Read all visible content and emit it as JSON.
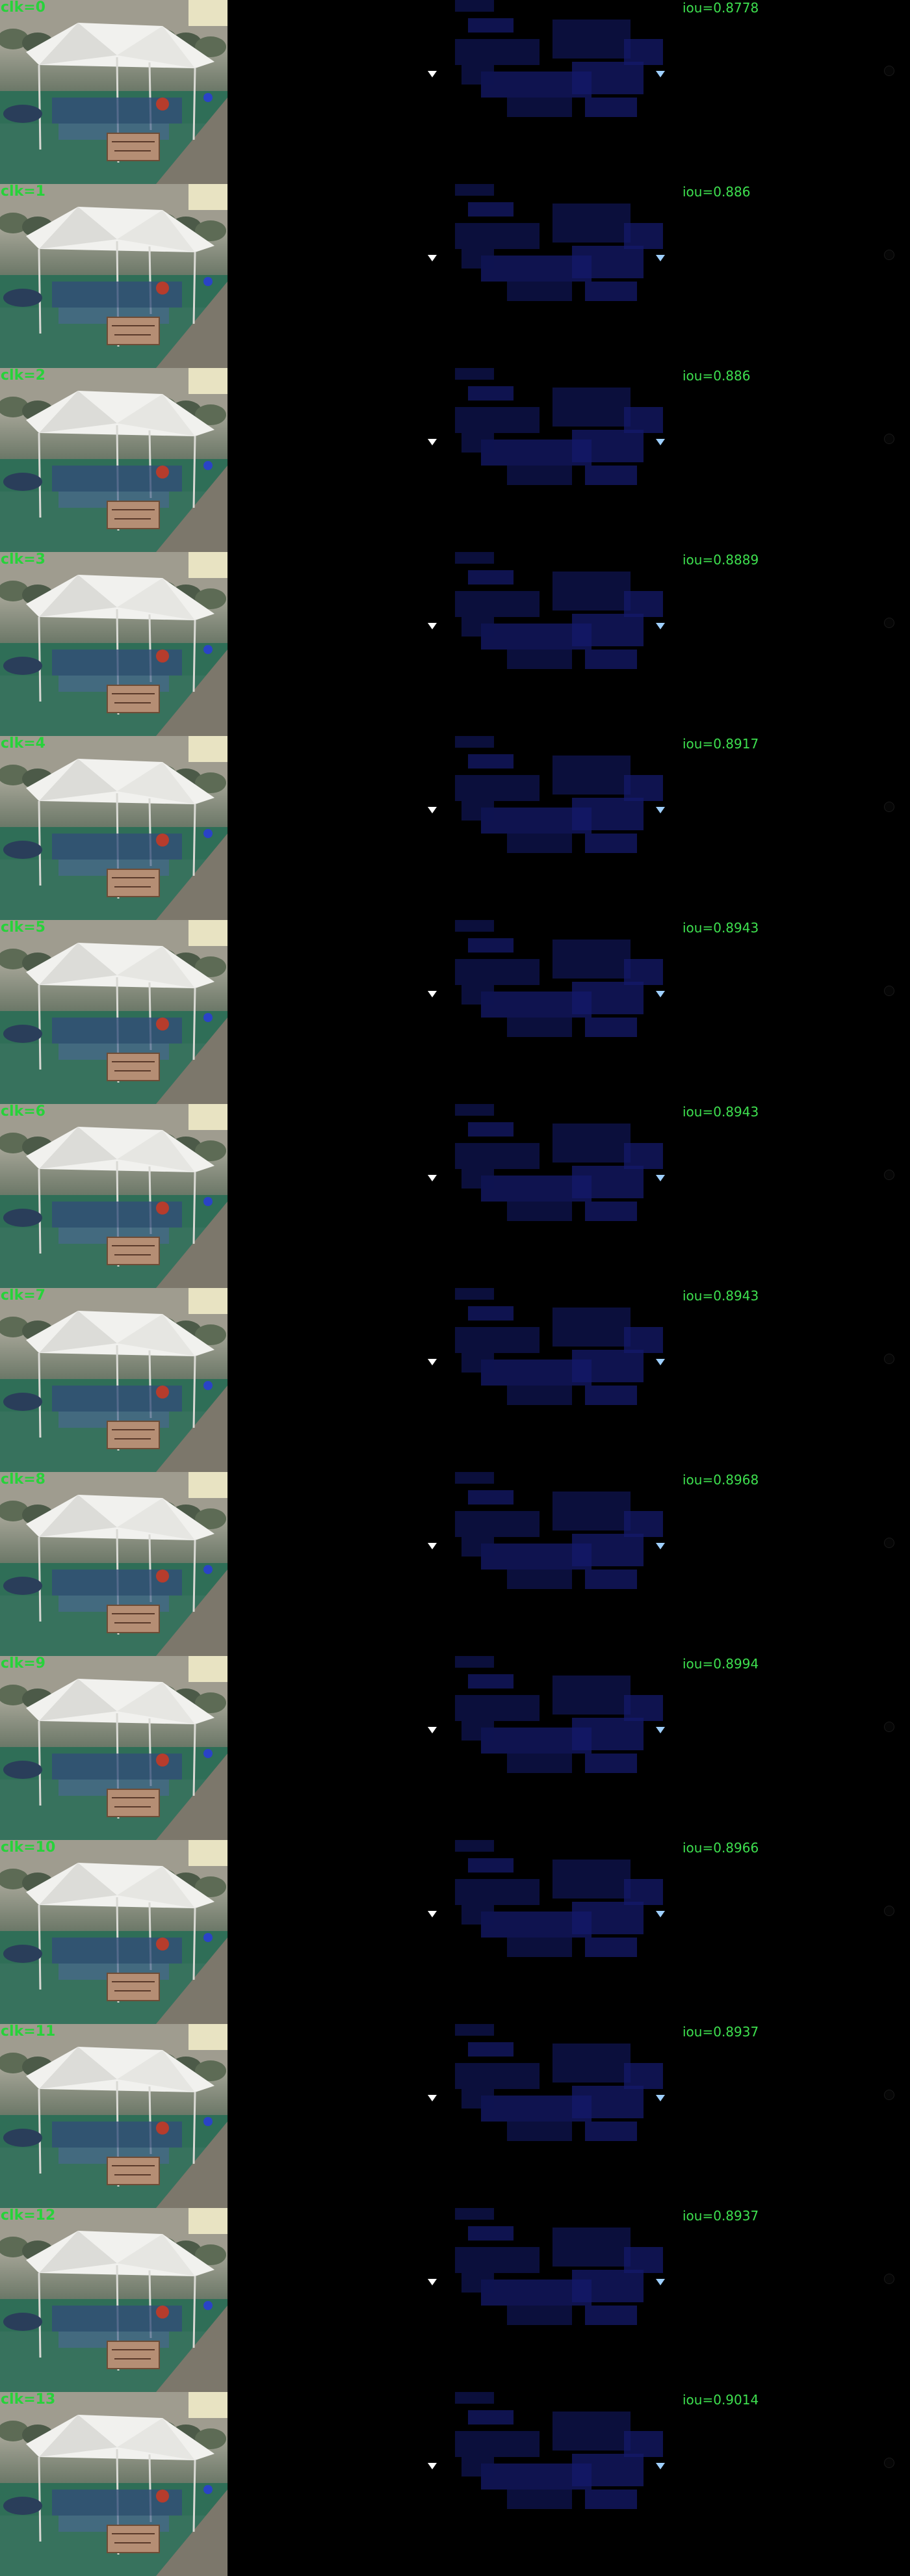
{
  "rows": [
    {
      "clk": "clk=0",
      "iou": "iou=0.8778"
    },
    {
      "clk": "clk=1",
      "iou": "iou=0.886"
    },
    {
      "clk": "clk=2",
      "iou": "iou=0.886"
    },
    {
      "clk": "clk=3",
      "iou": "iou=0.8889"
    },
    {
      "clk": "clk=4",
      "iou": "iou=0.8917"
    },
    {
      "clk": "clk=5",
      "iou": "iou=0.8943"
    },
    {
      "clk": "clk=6",
      "iou": "iou=0.8943"
    },
    {
      "clk": "clk=7",
      "iou": "iou=0.8943"
    },
    {
      "clk": "clk=8",
      "iou": "iou=0.8968"
    },
    {
      "clk": "clk=9",
      "iou": "iou=0.8994"
    },
    {
      "clk": "clk=10",
      "iou": "iou=0.8966"
    },
    {
      "clk": "clk=11",
      "iou": "iou=0.8937"
    },
    {
      "clk": "clk=12",
      "iou": "iou=0.8937"
    },
    {
      "clk": "clk=13",
      "iou": "iou=0.9014"
    }
  ],
  "colors": {
    "background": "#000000",
    "label_green": "#3ee04f",
    "mask_blue": "#1b1f8a",
    "click_dot": "#ffffff",
    "click_dot_blue": "#9fd0ff"
  },
  "icons": {
    "left_click": "white-arrowhead-icon",
    "right_click": "blue-arrowhead-icon",
    "edge": "circle-icon"
  }
}
